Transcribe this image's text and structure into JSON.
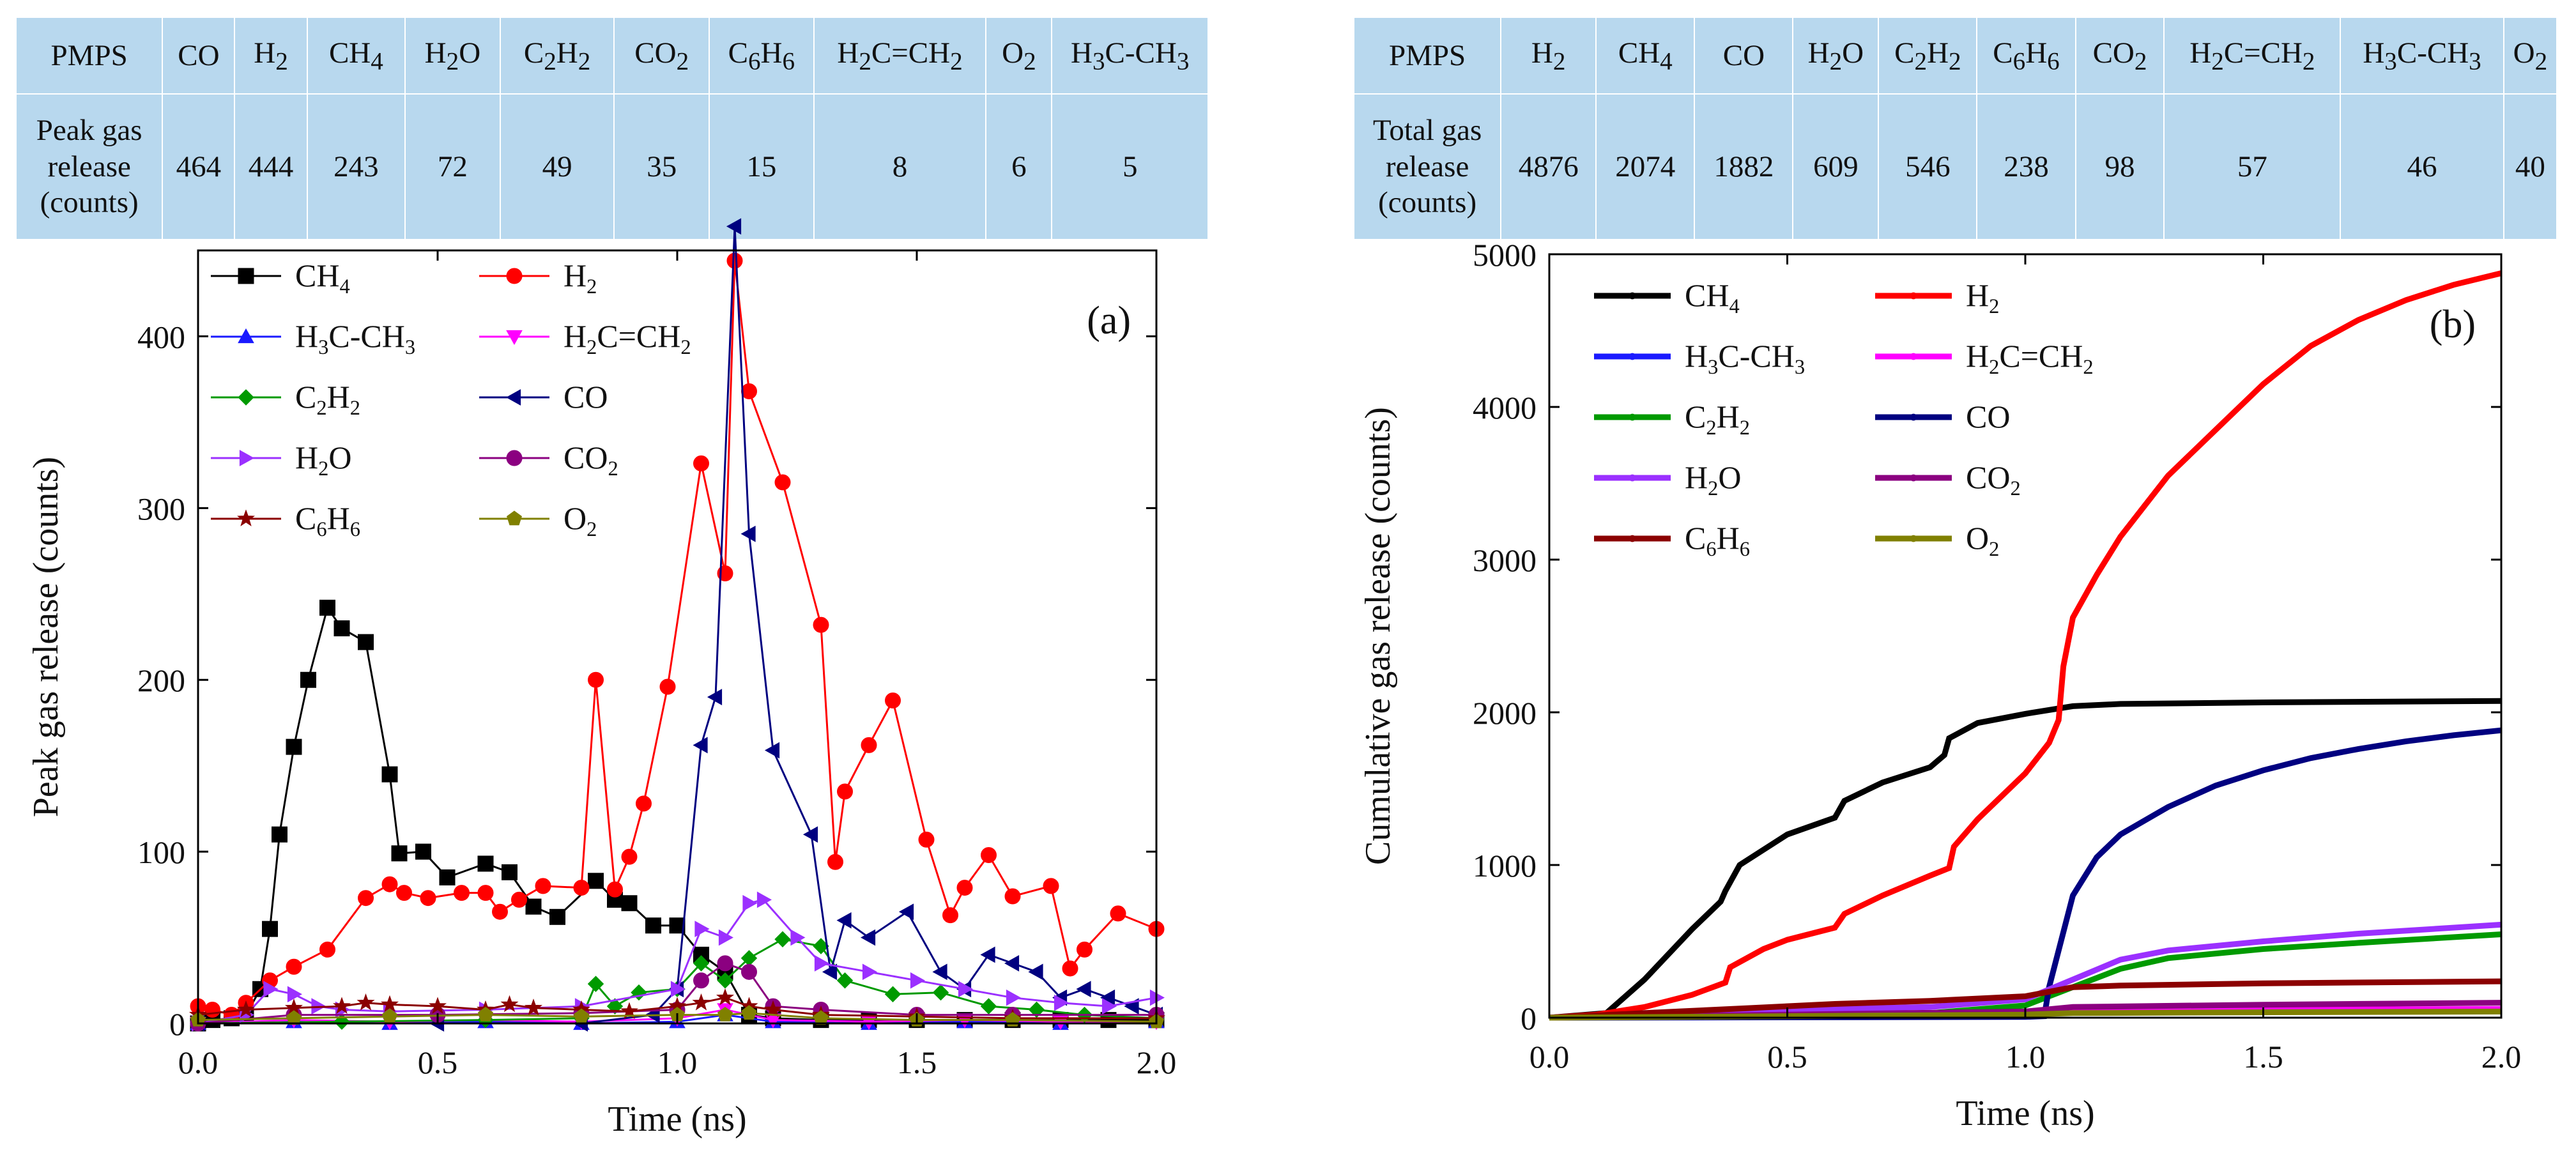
{
  "table_a": {
    "header": [
      "PMPS",
      "CO",
      "H<sub>2</sub>",
      "CH<sub>4</sub>",
      "H<sub>2</sub>O",
      "C<sub>2</sub>H<sub>2</sub>",
      "CO<sub>2</sub>",
      "C<sub>6</sub>H<sub>6</sub>",
      "H<sub>2</sub>C=CH<sub>2</sub>",
      "O<sub>2</sub>",
      "H<sub>3</sub>C-CH<sub>3</sub>"
    ],
    "row_label": "Peak gas release (counts)",
    "values": [
      "464",
      "444",
      "243",
      "72",
      "49",
      "35",
      "15",
      "8",
      "6",
      "5"
    ]
  },
  "table_b": {
    "header": [
      "PMPS",
      "H<sub>2</sub>",
      "CH<sub>4</sub>",
      "CO",
      "H<sub>2</sub>O",
      "C<sub>2</sub>H<sub>2</sub>",
      "C<sub>6</sub>H<sub>6</sub>",
      "CO<sub>2</sub>",
      "H<sub>2</sub>C=CH<sub>2</sub>",
      "H<sub>3</sub>C-CH<sub>3</sub>",
      "O<sub>2</sub>"
    ],
    "row_label": "Total gas release (counts)",
    "values": [
      "4876",
      "2074",
      "1882",
      "609",
      "546",
      "238",
      "98",
      "57",
      "46",
      "40"
    ]
  },
  "colors": {
    "CH4": "#000000",
    "H2": "#ff0000",
    "H3C-CH3": "#1a1aff",
    "H2C=CH2": "#ff00ff",
    "C2H2": "#009a00",
    "CO": "#000080",
    "H2O": "#9b30ff",
    "CO2": "#8b0080",
    "C6H6": "#8b0000",
    "O2": "#808000",
    "table_bg": "#b8d8ee"
  },
  "chart_data": [
    {
      "type": "line",
      "panel_label": "(a)",
      "xlabel": "Time (ns)",
      "ylabel": "Peak gas release (counts)",
      "xlim": [
        0,
        2.0
      ],
      "ylim": [
        0,
        450
      ],
      "xticks": [
        "0.0",
        "0.5",
        "1.0",
        "1.5",
        "2.0"
      ],
      "yticks": [
        "0",
        "100",
        "200",
        "300",
        "400"
      ],
      "legend": [
        "CH<sub>4</sub>",
        "H<sub>2</sub>",
        "H<sub>3</sub>C-CH<sub>3</sub>",
        "H<sub>2</sub>C=CH<sub>2</sub>",
        "C<sub>2</sub>H<sub>2</sub>",
        "CO",
        "H<sub>2</sub>O",
        "CO<sub>2</sub>",
        "C<sub>6</sub>H<sub>6</sub>",
        "O<sub>2</sub>"
      ],
      "legend_location": "upper-left",
      "series": [
        {
          "name": "CH4",
          "color": "#000000",
          "marker": "square",
          "x": [
            0,
            0.03,
            0.07,
            0.1,
            0.13,
            0.15,
            0.17,
            0.2,
            0.23,
            0.27,
            0.3,
            0.35,
            0.4,
            0.42,
            0.47,
            0.52,
            0.6,
            0.65,
            0.7,
            0.75,
            0.83,
            0.87,
            0.9,
            0.95,
            1.0,
            1.05,
            1.1,
            1.15,
            1.2,
            1.3,
            1.4,
            1.5,
            1.6,
            1.7,
            1.8,
            1.9,
            2.0
          ],
          "y": [
            0,
            2,
            3,
            5,
            20,
            55,
            110,
            161,
            200,
            242,
            230,
            222,
            145,
            99,
            100,
            85,
            93,
            88,
            68,
            62,
            83,
            72,
            70,
            57,
            57,
            40,
            30,
            5,
            3,
            2,
            2,
            2,
            2,
            2,
            2,
            2,
            2
          ]
        },
        {
          "name": "H2",
          "color": "#ff0000",
          "marker": "circle",
          "x": [
            0,
            0.03,
            0.07,
            0.1,
            0.15,
            0.2,
            0.27,
            0.35,
            0.4,
            0.43,
            0.48,
            0.55,
            0.6,
            0.63,
            0.67,
            0.72,
            0.8,
            0.83,
            0.87,
            0.9,
            0.93,
            0.98,
            1.05,
            1.1,
            1.12,
            1.15,
            1.22,
            1.3,
            1.33,
            1.35,
            1.4,
            1.45,
            1.52,
            1.57,
            1.6,
            1.65,
            1.7,
            1.78,
            1.82,
            1.85,
            1.92,
            2.0
          ],
          "y": [
            10,
            8,
            5,
            12,
            25,
            33,
            43,
            73,
            81,
            76,
            73,
            76,
            76,
            65,
            72,
            80,
            79,
            200,
            78,
            97,
            128,
            196,
            326,
            262,
            444,
            368,
            315,
            232,
            94,
            135,
            162,
            188,
            107,
            63,
            79,
            98,
            74,
            80,
            32,
            43,
            64,
            55
          ]
        },
        {
          "name": "H3C-CH3",
          "color": "#1a1aff",
          "marker": "triangle-up",
          "x": [
            0,
            0.2,
            0.4,
            0.6,
            0.8,
            1.0,
            1.1,
            1.2,
            1.4,
            1.6,
            1.8,
            2.0
          ],
          "y": [
            0,
            1,
            0,
            1,
            0,
            1,
            5,
            1,
            0,
            1,
            0,
            1
          ]
        },
        {
          "name": "H2C=CH2",
          "color": "#ff00ff",
          "marker": "triangle-down",
          "x": [
            0,
            0.2,
            0.4,
            0.6,
            0.8,
            1.0,
            1.1,
            1.2,
            1.4,
            1.6,
            1.8,
            2.0
          ],
          "y": [
            0,
            2,
            1,
            2,
            1,
            3,
            8,
            2,
            1,
            2,
            1,
            1
          ]
        },
        {
          "name": "C2H2",
          "color": "#009a00",
          "marker": "diamond",
          "x": [
            0,
            0.3,
            0.6,
            0.8,
            0.83,
            0.87,
            0.92,
            1.0,
            1.05,
            1.1,
            1.15,
            1.22,
            1.3,
            1.35,
            1.45,
            1.55,
            1.65,
            1.75,
            1.85,
            2.0
          ],
          "y": [
            0,
            1,
            2,
            3,
            23,
            10,
            18,
            20,
            35,
            25,
            38,
            49,
            45,
            25,
            17,
            18,
            10,
            8,
            5,
            3
          ]
        },
        {
          "name": "CO",
          "color": "#000080",
          "marker": "triangle-left",
          "x": [
            0,
            0.5,
            0.8,
            0.95,
            1.0,
            1.05,
            1.08,
            1.12,
            1.15,
            1.2,
            1.28,
            1.32,
            1.35,
            1.4,
            1.48,
            1.55,
            1.6,
            1.65,
            1.7,
            1.75,
            1.8,
            1.85,
            1.9,
            1.95,
            2.0
          ],
          "y": [
            0,
            0,
            0,
            5,
            20,
            162,
            190,
            464,
            285,
            159,
            110,
            30,
            60,
            50,
            65,
            30,
            20,
            40,
            35,
            30,
            15,
            20,
            15,
            10,
            5
          ]
        },
        {
          "name": "H2O",
          "color": "#9b30ff",
          "marker": "triangle-right",
          "x": [
            0,
            0.1,
            0.15,
            0.2,
            0.25,
            0.3,
            0.4,
            0.6,
            0.8,
            1.0,
            1.05,
            1.1,
            1.15,
            1.18,
            1.25,
            1.3,
            1.4,
            1.5,
            1.6,
            1.7,
            1.8,
            1.9,
            2.0
          ],
          "y": [
            0,
            5,
            20,
            17,
            10,
            8,
            7,
            8,
            10,
            20,
            55,
            50,
            70,
            72,
            50,
            35,
            30,
            25,
            20,
            15,
            12,
            10,
            15
          ]
        },
        {
          "name": "CO2",
          "color": "#8b0080",
          "marker": "circle",
          "x": [
            0,
            0.2,
            0.5,
            0.8,
            1.0,
            1.05,
            1.1,
            1.15,
            1.2,
            1.3,
            1.5,
            1.7,
            2.0
          ],
          "y": [
            0,
            5,
            5,
            6,
            8,
            25,
            35,
            30,
            10,
            8,
            5,
            5,
            5
          ]
        },
        {
          "name": "C6H6",
          "color": "#8b0000",
          "marker": "star",
          "x": [
            0,
            0.1,
            0.2,
            0.3,
            0.35,
            0.4,
            0.5,
            0.6,
            0.65,
            0.7,
            0.8,
            0.9,
            1.0,
            1.05,
            1.1,
            1.15,
            1.2,
            1.3,
            1.5,
            1.7,
            2.0
          ],
          "y": [
            5,
            8,
            9,
            10,
            12,
            11,
            10,
            8,
            11,
            9,
            8,
            7,
            10,
            12,
            15,
            10,
            8,
            5,
            4,
            3,
            3
          ]
        },
        {
          "name": "O2",
          "color": "#808000",
          "marker": "pentagon",
          "x": [
            0,
            0.2,
            0.4,
            0.6,
            0.8,
            1.0,
            1.1,
            1.15,
            1.3,
            1.5,
            1.7,
            2.0
          ],
          "y": [
            2,
            3,
            4,
            5,
            4,
            5,
            5,
            6,
            3,
            2,
            2,
            1
          ]
        }
      ]
    },
    {
      "type": "line",
      "panel_label": "(b)",
      "xlabel": "Time (ns)",
      "ylabel": "Cumulative gas release (counts)",
      "xlim": [
        0,
        2.0
      ],
      "ylim": [
        0,
        5000
      ],
      "xticks": [
        "0.0",
        "0.5",
        "1.0",
        "1.5",
        "2.0"
      ],
      "yticks": [
        "0",
        "1000",
        "2000",
        "3000",
        "4000",
        "5000"
      ],
      "legend": [
        "CH<sub>4</sub>",
        "H<sub>2</sub>",
        "H<sub>3</sub>C-CH<sub>3</sub>",
        "H<sub>2</sub>C=CH<sub>2</sub>",
        "C<sub>2</sub>H<sub>2</sub>",
        "CO",
        "H<sub>2</sub>O",
        "CO<sub>2</sub>",
        "C<sub>6</sub>H<sub>6</sub>",
        "O<sub>2</sub>"
      ],
      "legend_location": "upper-left",
      "series": [
        {
          "name": "CH4",
          "color": "#000000",
          "x": [
            0,
            0.12,
            0.2,
            0.3,
            0.36,
            0.37,
            0.4,
            0.5,
            0.6,
            0.62,
            0.7,
            0.8,
            0.83,
            0.84,
            0.9,
            1.0,
            1.1,
            1.2,
            1.5,
            2.0
          ],
          "y": [
            0,
            30,
            250,
            580,
            760,
            830,
            1000,
            1200,
            1310,
            1420,
            1540,
            1640,
            1720,
            1830,
            1930,
            1990,
            2040,
            2055,
            2065,
            2074
          ]
        },
        {
          "name": "H2",
          "color": "#ff0000",
          "x": [
            0,
            0.1,
            0.2,
            0.3,
            0.37,
            0.38,
            0.45,
            0.5,
            0.6,
            0.62,
            0.7,
            0.8,
            0.84,
            0.85,
            0.9,
            1.0,
            1.05,
            1.07,
            1.08,
            1.1,
            1.15,
            1.2,
            1.3,
            1.4,
            1.5,
            1.6,
            1.7,
            1.8,
            1.9,
            2.0
          ],
          "y": [
            0,
            20,
            70,
            150,
            230,
            330,
            450,
            510,
            590,
            680,
            800,
            930,
            980,
            1120,
            1300,
            1600,
            1800,
            1950,
            2300,
            2620,
            2900,
            3150,
            3550,
            3850,
            4150,
            4400,
            4570,
            4700,
            4800,
            4876
          ]
        },
        {
          "name": "H3C-CH3",
          "color": "#1a1aff",
          "x": [
            0,
            0.5,
            1.0,
            1.1,
            1.5,
            2.0
          ],
          "y": [
            0,
            10,
            20,
            35,
            42,
            46
          ]
        },
        {
          "name": "H2C=CH2",
          "color": "#ff00ff",
          "x": [
            0,
            0.5,
            1.0,
            1.1,
            1.5,
            2.0
          ],
          "y": [
            0,
            15,
            30,
            45,
            52,
            57
          ]
        },
        {
          "name": "C2H2",
          "color": "#009a00",
          "x": [
            0,
            0.8,
            1.0,
            1.1,
            1.2,
            1.3,
            1.5,
            1.7,
            2.0
          ],
          "y": [
            0,
            30,
            80,
            200,
            320,
            390,
            450,
            490,
            546
          ]
        },
        {
          "name": "CO",
          "color": "#000080",
          "x": [
            0,
            1.0,
            1.04,
            1.05,
            1.1,
            1.15,
            1.2,
            1.3,
            1.4,
            1.5,
            1.6,
            1.7,
            1.8,
            1.9,
            2.0
          ],
          "y": [
            0,
            5,
            10,
            200,
            800,
            1050,
            1200,
            1380,
            1520,
            1620,
            1700,
            1760,
            1810,
            1850,
            1882
          ]
        },
        {
          "name": "H2O",
          "color": "#9b30ff",
          "x": [
            0,
            0.3,
            0.8,
            1.0,
            1.1,
            1.2,
            1.3,
            1.5,
            1.7,
            2.0
          ],
          "y": [
            0,
            40,
            70,
            120,
            250,
            380,
            440,
            500,
            550,
            609
          ]
        },
        {
          "name": "CO2",
          "color": "#8b0080",
          "x": [
            0,
            0.5,
            1.0,
            1.1,
            1.5,
            2.0
          ],
          "y": [
            0,
            20,
            40,
            70,
            85,
            98
          ]
        },
        {
          "name": "C6H6",
          "color": "#8b0000",
          "x": [
            0,
            0.2,
            0.4,
            0.6,
            0.8,
            1.0,
            1.05,
            1.1,
            1.2,
            1.5,
            2.0
          ],
          "y": [
            0,
            30,
            60,
            90,
            110,
            140,
            170,
            200,
            210,
            225,
            238
          ]
        },
        {
          "name": "O2",
          "color": "#808000",
          "x": [
            0,
            0.5,
            1.0,
            1.1,
            1.5,
            2.0
          ],
          "y": [
            0,
            10,
            20,
            30,
            35,
            40
          ]
        }
      ]
    }
  ]
}
